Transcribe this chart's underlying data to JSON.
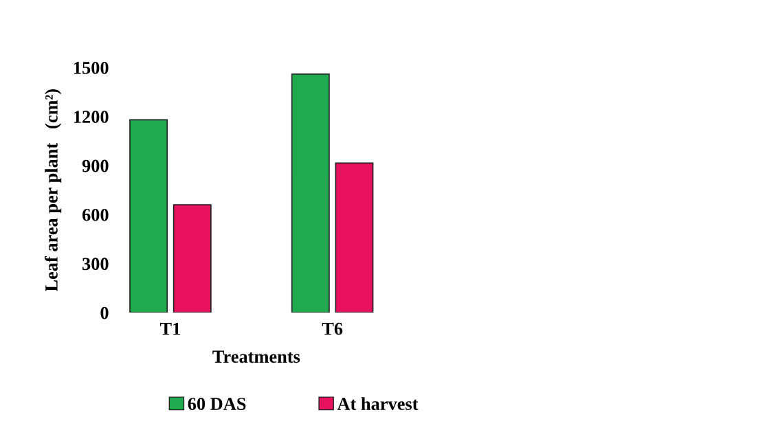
{
  "chart_data": {
    "type": "bar",
    "xlabel": "Treatments",
    "ylabel": "Leaf area per plant   (cm²)",
    "categories": [
      "T1",
      "T6"
    ],
    "series": [
      {
        "name": "60 DAS",
        "color": "#1faa4f",
        "values": [
          1180,
          1460
        ]
      },
      {
        "name": "At harvest",
        "color": "#e8115e",
        "values": [
          660,
          915
        ]
      }
    ],
    "ylim": [
      0,
      1500
    ],
    "yticks": [
      0,
      300,
      600,
      900,
      1200,
      1500
    ],
    "grid": false,
    "legend": "bottom"
  }
}
